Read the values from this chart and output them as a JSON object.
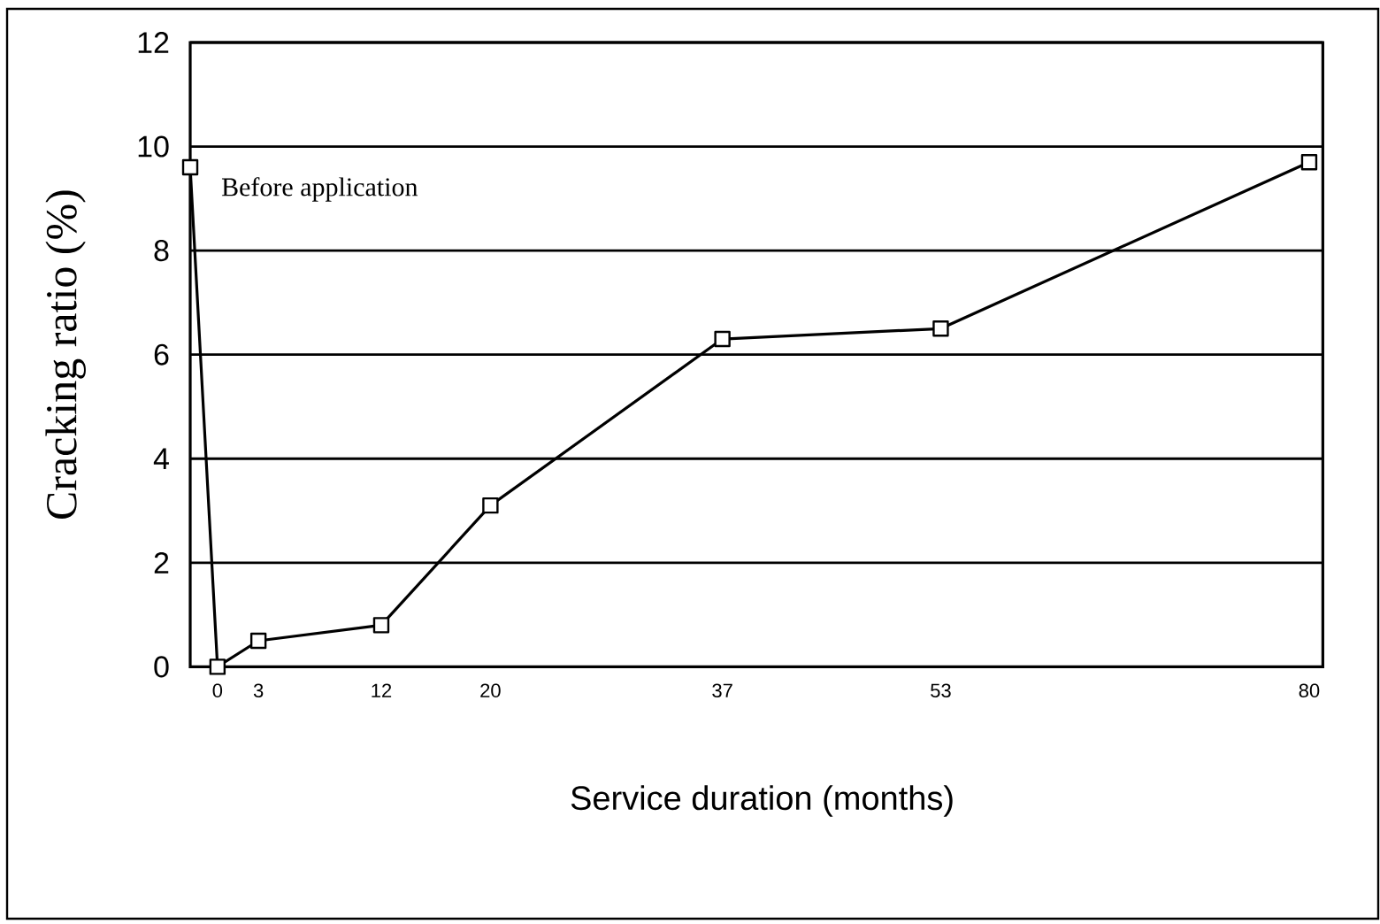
{
  "chart_data": {
    "type": "line",
    "xlabel": "Service duration (months)",
    "ylabel": "Cracking ratio (%)",
    "x": [
      -2,
      0,
      3,
      12,
      20,
      37,
      53,
      80
    ],
    "series": [
      {
        "color": "#000000",
        "values": [
          9.6,
          0,
          0.5,
          0.8,
          3.1,
          6.3,
          6.5,
          9.7
        ]
      }
    ],
    "xlim": [
      -2,
      81
    ],
    "xticks": [
      0,
      3,
      12,
      20,
      37,
      53,
      80
    ],
    "ylim": [
      0,
      12
    ],
    "yticks": [
      0,
      2,
      4,
      6,
      8,
      10,
      12
    ],
    "grid": "y",
    "marker": "square",
    "line_style": "solid",
    "annotations": [
      {
        "text": "Before application",
        "x": -2,
        "y": 9.6
      }
    ]
  }
}
